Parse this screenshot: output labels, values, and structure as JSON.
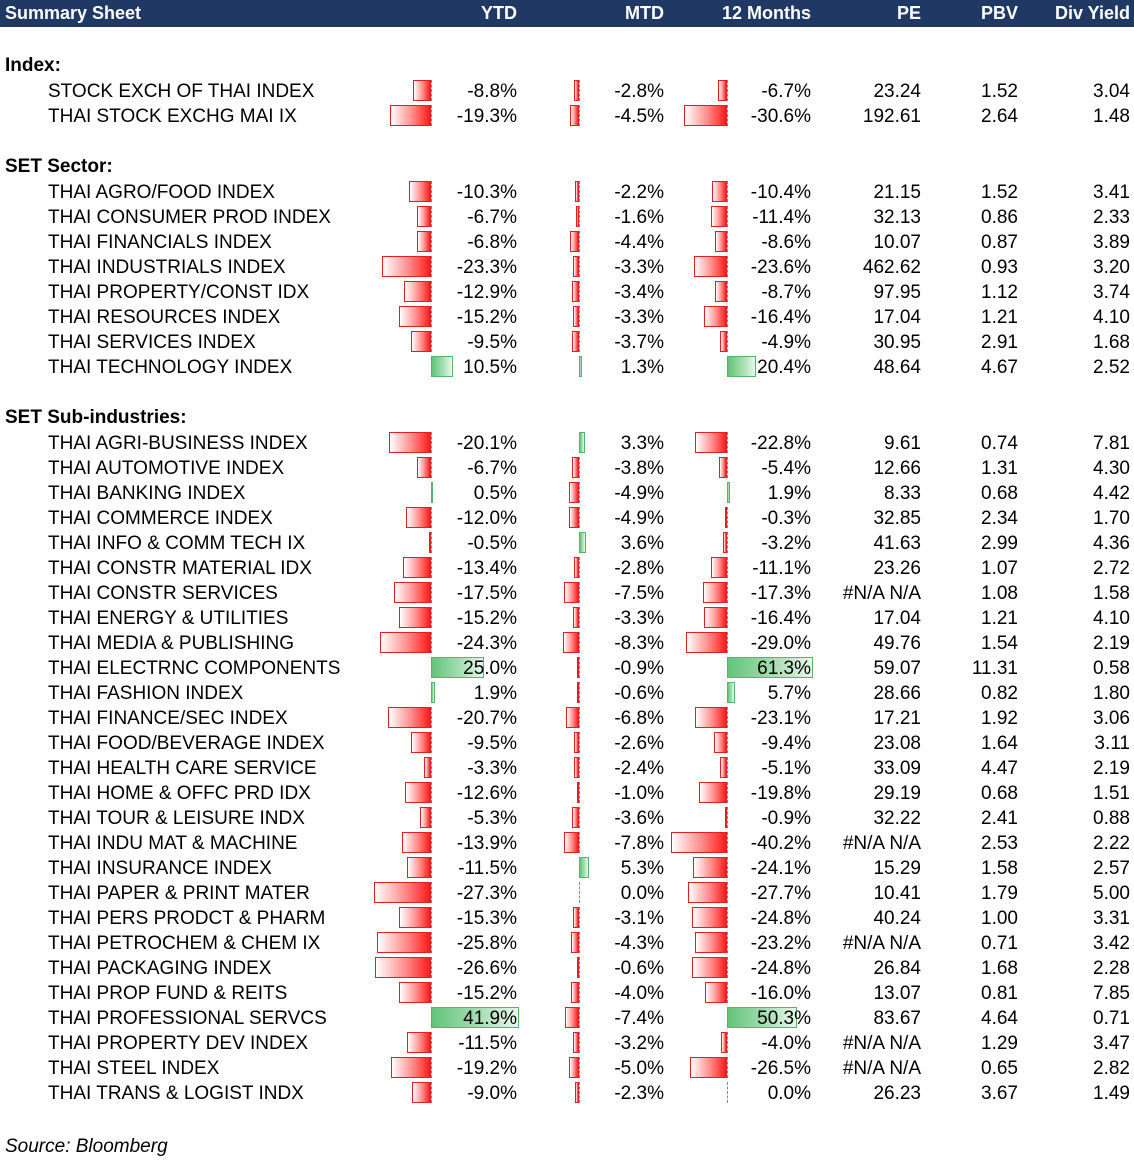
{
  "header": {
    "title": "Summary Sheet",
    "ytd": "YTD",
    "mtd": "MTD",
    "months12": "12 Months",
    "pe": "PE",
    "pbv": "PBV",
    "div_yield": "Div Yield"
  },
  "sections": [
    {
      "label": "Index:",
      "rows": [
        {
          "name": "STOCK EXCH OF THAI INDEX",
          "ytd": "-8.8%",
          "mtd": "-2.8%",
          "m12": "-6.7%",
          "pe": "23.24",
          "pbv": "1.52",
          "div": "3.04",
          "ytd_v": -8.8,
          "mtd_v": -2.8,
          "m12_v": -6.7
        },
        {
          "name": "THAI STOCK EXCHG MAI IX",
          "ytd": "-19.3%",
          "mtd": "-4.5%",
          "m12": "-30.6%",
          "pe": "192.61",
          "pbv": "2.64",
          "div": "1.48",
          "ytd_v": -19.3,
          "mtd_v": -4.5,
          "m12_v": -30.6
        }
      ]
    },
    {
      "label": "SET Sector:",
      "rows": [
        {
          "name": "THAI AGRO/FOOD INDEX",
          "ytd": "-10.3%",
          "mtd": "-2.2%",
          "m12": "-10.4%",
          "pe": "21.15",
          "pbv": "1.52",
          "div": "3.41",
          "ytd_v": -10.3,
          "mtd_v": -2.2,
          "m12_v": -10.4
        },
        {
          "name": "THAI CONSUMER PROD INDEX",
          "ytd": "-6.7%",
          "mtd": "-1.6%",
          "m12": "-11.4%",
          "pe": "32.13",
          "pbv": "0.86",
          "div": "2.33",
          "ytd_v": -6.7,
          "mtd_v": -1.6,
          "m12_v": -11.4
        },
        {
          "name": "THAI FINANCIALS INDEX",
          "ytd": "-6.8%",
          "mtd": "-4.4%",
          "m12": "-8.6%",
          "pe": "10.07",
          "pbv": "0.87",
          "div": "3.89",
          "ytd_v": -6.8,
          "mtd_v": -4.4,
          "m12_v": -8.6
        },
        {
          "name": "THAI INDUSTRIALS INDEX",
          "ytd": "-23.3%",
          "mtd": "-3.3%",
          "m12": "-23.6%",
          "pe": "462.62",
          "pbv": "0.93",
          "div": "3.20",
          "ytd_v": -23.3,
          "mtd_v": -3.3,
          "m12_v": -23.6
        },
        {
          "name": "THAI PROPERTY/CONST IDX",
          "ytd": "-12.9%",
          "mtd": "-3.4%",
          "m12": "-8.7%",
          "pe": "97.95",
          "pbv": "1.12",
          "div": "3.74",
          "ytd_v": -12.9,
          "mtd_v": -3.4,
          "m12_v": -8.7
        },
        {
          "name": "THAI RESOURCES INDEX",
          "ytd": "-15.2%",
          "mtd": "-3.3%",
          "m12": "-16.4%",
          "pe": "17.04",
          "pbv": "1.21",
          "div": "4.10",
          "ytd_v": -15.2,
          "mtd_v": -3.3,
          "m12_v": -16.4
        },
        {
          "name": "THAI SERVICES INDEX",
          "ytd": "-9.5%",
          "mtd": "-3.7%",
          "m12": "-4.9%",
          "pe": "30.95",
          "pbv": "2.91",
          "div": "1.68",
          "ytd_v": -9.5,
          "mtd_v": -3.7,
          "m12_v": -4.9
        },
        {
          "name": "THAI TECHNOLOGY INDEX",
          "ytd": "10.5%",
          "mtd": "1.3%",
          "m12": "20.4%",
          "pe": "48.64",
          "pbv": "4.67",
          "div": "2.52",
          "ytd_v": 10.5,
          "mtd_v": 1.3,
          "m12_v": 20.4
        }
      ]
    },
    {
      "label": "SET Sub-industries:",
      "rows": [
        {
          "name": "THAI AGRI-BUSINESS INDEX",
          "ytd": "-20.1%",
          "mtd": "3.3%",
          "m12": "-22.8%",
          "pe": "9.61",
          "pbv": "0.74",
          "div": "7.81",
          "ytd_v": -20.1,
          "mtd_v": 3.3,
          "m12_v": -22.8
        },
        {
          "name": "THAI AUTOMOTIVE INDEX",
          "ytd": "-6.7%",
          "mtd": "-3.8%",
          "m12": "-5.4%",
          "pe": "12.66",
          "pbv": "1.31",
          "div": "4.30",
          "ytd_v": -6.7,
          "mtd_v": -3.8,
          "m12_v": -5.4
        },
        {
          "name": "THAI BANKING INDEX",
          "ytd": "0.5%",
          "mtd": "-4.9%",
          "m12": "1.9%",
          "pe": "8.33",
          "pbv": "0.68",
          "div": "4.42",
          "ytd_v": 0.5,
          "mtd_v": -4.9,
          "m12_v": 1.9
        },
        {
          "name": "THAI COMMERCE INDEX",
          "ytd": "-12.0%",
          "mtd": "-4.9%",
          "m12": "-0.3%",
          "pe": "32.85",
          "pbv": "2.34",
          "div": "1.70",
          "ytd_v": -12.0,
          "mtd_v": -4.9,
          "m12_v": -0.3
        },
        {
          "name": "THAI INFO & COMM TECH IX",
          "ytd": "-0.5%",
          "mtd": "3.6%",
          "m12": "-3.2%",
          "pe": "41.63",
          "pbv": "2.99",
          "div": "4.36",
          "ytd_v": -0.5,
          "mtd_v": 3.6,
          "m12_v": -3.2
        },
        {
          "name": "THAI CONSTR MATERIAL IDX",
          "ytd": "-13.4%",
          "mtd": "-2.8%",
          "m12": "-11.1%",
          "pe": "23.26",
          "pbv": "1.07",
          "div": "2.72",
          "ytd_v": -13.4,
          "mtd_v": -2.8,
          "m12_v": -11.1
        },
        {
          "name": "THAI CONSTR SERVICES",
          "ytd": "-17.5%",
          "mtd": "-7.5%",
          "m12": "-17.3%",
          "pe": "#N/A N/A",
          "pbv": "1.08",
          "div": "1.58",
          "ytd_v": -17.5,
          "mtd_v": -7.5,
          "m12_v": -17.3
        },
        {
          "name": "THAI ENERGY & UTILITIES",
          "ytd": "-15.2%",
          "mtd": "-3.3%",
          "m12": "-16.4%",
          "pe": "17.04",
          "pbv": "1.21",
          "div": "4.10",
          "ytd_v": -15.2,
          "mtd_v": -3.3,
          "m12_v": -16.4
        },
        {
          "name": "THAI MEDIA & PUBLISHING",
          "ytd": "-24.3%",
          "mtd": "-8.3%",
          "m12": "-29.0%",
          "pe": "49.76",
          "pbv": "1.54",
          "div": "2.19",
          "ytd_v": -24.3,
          "mtd_v": -8.3,
          "m12_v": -29.0
        },
        {
          "name": "THAI ELECTRNC COMPONENTS",
          "ytd": "25.0%",
          "mtd": "-0.9%",
          "m12": "61.3%",
          "pe": "59.07",
          "pbv": "11.31",
          "div": "0.58",
          "ytd_v": 25.0,
          "mtd_v": -0.9,
          "m12_v": 61.3
        },
        {
          "name": "THAI FASHION INDEX",
          "ytd": "1.9%",
          "mtd": "-0.6%",
          "m12": "5.7%",
          "pe": "28.66",
          "pbv": "0.82",
          "div": "1.80",
          "ytd_v": 1.9,
          "mtd_v": -0.6,
          "m12_v": 5.7
        },
        {
          "name": "THAI FINANCE/SEC INDEX",
          "ytd": "-20.7%",
          "mtd": "-6.8%",
          "m12": "-23.1%",
          "pe": "17.21",
          "pbv": "1.92",
          "div": "3.06",
          "ytd_v": -20.7,
          "mtd_v": -6.8,
          "m12_v": -23.1
        },
        {
          "name": "THAI FOOD/BEVERAGE INDEX",
          "ytd": "-9.5%",
          "mtd": "-2.6%",
          "m12": "-9.4%",
          "pe": "23.08",
          "pbv": "1.64",
          "div": "3.11",
          "ytd_v": -9.5,
          "mtd_v": -2.6,
          "m12_v": -9.4
        },
        {
          "name": "THAI HEALTH CARE SERVICE",
          "ytd": "-3.3%",
          "mtd": "-2.4%",
          "m12": "-5.1%",
          "pe": "33.09",
          "pbv": "4.47",
          "div": "2.19",
          "ytd_v": -3.3,
          "mtd_v": -2.4,
          "m12_v": -5.1
        },
        {
          "name": "THAI HOME & OFFC PRD IDX",
          "ytd": "-12.6%",
          "mtd": "-1.0%",
          "m12": "-19.8%",
          "pe": "29.19",
          "pbv": "0.68",
          "div": "1.51",
          "ytd_v": -12.6,
          "mtd_v": -1.0,
          "m12_v": -19.8
        },
        {
          "name": "THAI TOUR & LEISURE INDX",
          "ytd": "-5.3%",
          "mtd": "-3.6%",
          "m12": "-0.9%",
          "pe": "32.22",
          "pbv": "2.41",
          "div": "0.88",
          "ytd_v": -5.3,
          "mtd_v": -3.6,
          "m12_v": -0.9
        },
        {
          "name": "THAI INDU MAT & MACHINE",
          "ytd": "-13.9%",
          "mtd": "-7.8%",
          "m12": "-40.2%",
          "pe": "#N/A N/A",
          "pbv": "2.53",
          "div": "2.22",
          "ytd_v": -13.9,
          "mtd_v": -7.8,
          "m12_v": -40.2
        },
        {
          "name": "THAI INSURANCE INDEX",
          "ytd": "-11.5%",
          "mtd": "5.3%",
          "m12": "-24.1%",
          "pe": "15.29",
          "pbv": "1.58",
          "div": "2.57",
          "ytd_v": -11.5,
          "mtd_v": 5.3,
          "m12_v": -24.1
        },
        {
          "name": "THAI PAPER & PRINT MATER",
          "ytd": "-27.3%",
          "mtd": "0.0%",
          "m12": "-27.7%",
          "pe": "10.41",
          "pbv": "1.79",
          "div": "5.00",
          "ytd_v": -27.3,
          "mtd_v": 0.0,
          "m12_v": -27.7
        },
        {
          "name": "THAI PERS PRODCT & PHARM",
          "ytd": "-15.3%",
          "mtd": "-3.1%",
          "m12": "-24.8%",
          "pe": "40.24",
          "pbv": "1.00",
          "div": "3.31",
          "ytd_v": -15.3,
          "mtd_v": -3.1,
          "m12_v": -24.8
        },
        {
          "name": "THAI PETROCHEM & CHEM IX",
          "ytd": "-25.8%",
          "mtd": "-4.3%",
          "m12": "-23.2%",
          "pe": "#N/A N/A",
          "pbv": "0.71",
          "div": "3.42",
          "ytd_v": -25.8,
          "mtd_v": -4.3,
          "m12_v": -23.2
        },
        {
          "name": "THAI PACKAGING INDEX",
          "ytd": "-26.6%",
          "mtd": "-0.6%",
          "m12": "-24.8%",
          "pe": "26.84",
          "pbv": "1.68",
          "div": "2.28",
          "ytd_v": -26.6,
          "mtd_v": -0.6,
          "m12_v": -24.8
        },
        {
          "name": "THAI PROP FUND & REITS",
          "ytd": "-15.2%",
          "mtd": "-4.0%",
          "m12": "-16.0%",
          "pe": "13.07",
          "pbv": "0.81",
          "div": "7.85",
          "ytd_v": -15.2,
          "mtd_v": -4.0,
          "m12_v": -16.0
        },
        {
          "name": "THAI PROFESSIONAL SERVCS",
          "ytd": "41.9%",
          "mtd": "-7.4%",
          "m12": "50.3%",
          "pe": "83.67",
          "pbv": "4.64",
          "div": "0.71",
          "ytd_v": 41.9,
          "mtd_v": -7.4,
          "m12_v": 50.3
        },
        {
          "name": "THAI PROPERTY DEV INDEX",
          "ytd": "-11.5%",
          "mtd": "-3.2%",
          "m12": "-4.0%",
          "pe": "#N/A N/A",
          "pbv": "1.29",
          "div": "3.47",
          "ytd_v": -11.5,
          "mtd_v": -3.2,
          "m12_v": -4.0
        },
        {
          "name": "THAI STEEL INDEX",
          "ytd": "-19.2%",
          "mtd": "-5.0%",
          "m12": "-26.5%",
          "pe": "#N/A N/A",
          "pbv": "0.65",
          "div": "2.82",
          "ytd_v": -19.2,
          "mtd_v": -5.0,
          "m12_v": -26.5
        },
        {
          "name": "THAI TRANS & LOGIST INDX",
          "ytd": "-9.0%",
          "mtd": "-2.3%",
          "m12": "0.0%",
          "pe": "26.23",
          "pbv": "3.67",
          "div": "1.49",
          "ytd_v": -9.0,
          "mtd_v": -2.3,
          "m12_v": 0.0
        }
      ]
    }
  ],
  "footer": {
    "source": "Source: Bloomberg"
  },
  "colors": {
    "header_bg": "#1f3864",
    "negative_bar": "#ff1a1a",
    "positive_bar": "#62c47a"
  }
}
